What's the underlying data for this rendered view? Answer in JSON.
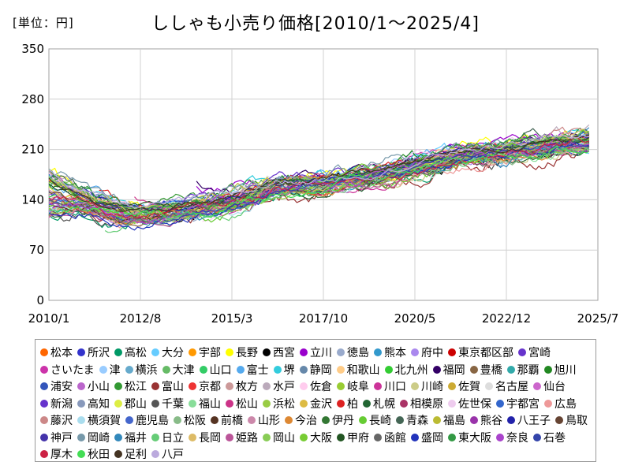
{
  "header": {
    "unit": "[単位：円]"
  },
  "chart_data": {
    "type": "line",
    "title": "ししゃも小売り価格[2010/1～2025/4]",
    "xlabel": "",
    "ylabel": "",
    "ylim": [
      0,
      350
    ],
    "yticks": [
      "0",
      "70",
      "140",
      "210",
      "280",
      "350"
    ],
    "xticks": [
      "2010/1",
      "2012/8",
      "2015/3",
      "2017/10",
      "2020/5",
      "2022/12",
      "2025/7"
    ],
    "grid": true,
    "legend_position": "bottom",
    "trend": {
      "x": [
        "2010/1",
        "2011/1",
        "2012/1",
        "2012/8",
        "2013/6",
        "2014/6",
        "2015/3",
        "2016/1",
        "2016/6",
        "2017/1",
        "2017/10",
        "2018/6",
        "2019/6",
        "2020/5",
        "2021/6",
        "2022/6",
        "2022/12",
        "2023/6",
        "2024/6",
        "2025/4"
      ],
      "values": [
        152,
        140,
        122,
        120,
        124,
        130,
        136,
        148,
        158,
        160,
        162,
        168,
        176,
        186,
        200,
        206,
        208,
        212,
        218,
        222
      ]
    },
    "series": [
      {
        "name": "松本",
        "color": "#ff6600"
      },
      {
        "name": "所沢",
        "color": "#3333cc"
      },
      {
        "name": "高松",
        "color": "#009966"
      },
      {
        "name": "大分",
        "color": "#66ccff"
      },
      {
        "name": "宇部",
        "color": "#ff9900"
      },
      {
        "name": "長野",
        "color": "#ffff00"
      },
      {
        "name": "西宮",
        "color": "#000000"
      },
      {
        "name": "立川",
        "color": "#9900cc"
      },
      {
        "name": "徳島",
        "color": "#99aacc"
      },
      {
        "name": "熊本",
        "color": "#3399cc"
      },
      {
        "name": "府中",
        "color": "#aa88ee"
      },
      {
        "name": "東京都区部",
        "color": "#cc0000"
      },
      {
        "name": "宮崎",
        "color": "#6633cc"
      },
      {
        "name": "さいたま",
        "color": "#cc33aa"
      },
      {
        "name": "津",
        "color": "#99ccff"
      },
      {
        "name": "横浜",
        "color": "#66aacc"
      },
      {
        "name": "大津",
        "color": "#66bb66"
      },
      {
        "name": "山口",
        "color": "#33cc66"
      },
      {
        "name": "富士",
        "color": "#55aaee"
      },
      {
        "name": "堺",
        "color": "#33ccdd"
      },
      {
        "name": "静岡",
        "color": "#6688aa"
      },
      {
        "name": "和歌山",
        "color": "#ffcc88"
      },
      {
        "name": "北九州",
        "color": "#33cc33"
      },
      {
        "name": "福岡",
        "color": "#330066"
      },
      {
        "name": "豊橋",
        "color": "#886644"
      },
      {
        "name": "那覇",
        "color": "#33aaaa"
      },
      {
        "name": "旭川",
        "color": "#228822"
      },
      {
        "name": "浦安",
        "color": "#3355bb"
      },
      {
        "name": "小山",
        "color": "#bb66cc"
      },
      {
        "name": "松江",
        "color": "#339933"
      },
      {
        "name": "富山",
        "color": "#993333"
      },
      {
        "name": "京都",
        "color": "#ee3333"
      },
      {
        "name": "枚方",
        "color": "#cc9999"
      },
      {
        "name": "水戸",
        "color": "#bbaabb"
      },
      {
        "name": "佐倉",
        "color": "#ffccee"
      },
      {
        "name": "岐阜",
        "color": "#99cc33"
      },
      {
        "name": "川口",
        "color": "#cc3399"
      },
      {
        "name": "川崎",
        "color": "#cccc88"
      },
      {
        "name": "佐賀",
        "color": "#ccaa33"
      },
      {
        "name": "名古屋",
        "color": "#dddddd"
      },
      {
        "name": "仙台",
        "color": "#cc66cc"
      },
      {
        "name": "新潟",
        "color": "#6633cc"
      },
      {
        "name": "高知",
        "color": "#8899bb"
      },
      {
        "name": "郡山",
        "color": "#ddee44"
      },
      {
        "name": "千葉",
        "color": "#555555"
      },
      {
        "name": "福山",
        "color": "#88dd99"
      },
      {
        "name": "松山",
        "color": "#cc3388"
      },
      {
        "name": "浜松",
        "color": "#99cc44"
      },
      {
        "name": "金沢",
        "color": "#ddbb44"
      },
      {
        "name": "柏",
        "color": "#dd2222"
      },
      {
        "name": "札幌",
        "color": "#226633"
      },
      {
        "name": "相模原",
        "color": "#aa3366"
      },
      {
        "name": "佐世保",
        "color": "#eeccee"
      },
      {
        "name": "宇都宮",
        "color": "#3366cc"
      },
      {
        "name": "広島",
        "color": "#ee9999"
      },
      {
        "name": "藤沢",
        "color": "#cc8888"
      },
      {
        "name": "横須賀",
        "color": "#aaddee"
      },
      {
        "name": "鹿児島",
        "color": "#4466cc"
      },
      {
        "name": "松阪",
        "color": "#88bb88"
      },
      {
        "name": "前橋",
        "color": "#553322"
      },
      {
        "name": "山形",
        "color": "#cc88aa"
      },
      {
        "name": "今治",
        "color": "#dd8833"
      },
      {
        "name": "伊丹",
        "color": "#337733"
      },
      {
        "name": "長崎",
        "color": "#66cc33"
      },
      {
        "name": "青森",
        "color": "#446655"
      },
      {
        "name": "福島",
        "color": "#bbbb33"
      },
      {
        "name": "熊谷",
        "color": "#9933aa"
      },
      {
        "name": "八王子",
        "color": "#2222aa"
      },
      {
        "name": "鳥取",
        "color": "#664433"
      },
      {
        "name": "神戸",
        "color": "#4433aa"
      },
      {
        "name": "岡崎",
        "color": "#7799aa"
      },
      {
        "name": "福井",
        "color": "#3388bb"
      },
      {
        "name": "日立",
        "color": "#66cc77"
      },
      {
        "name": "長岡",
        "color": "#ddbb66"
      },
      {
        "name": "姫路",
        "color": "#bb5599"
      },
      {
        "name": "岡山",
        "color": "#88cc55"
      },
      {
        "name": "大阪",
        "color": "#77cc33"
      },
      {
        "name": "甲府",
        "color": "#225522"
      },
      {
        "name": "函館",
        "color": "#666666"
      },
      {
        "name": "盛岡",
        "color": "#2233bb"
      },
      {
        "name": "東大阪",
        "color": "#339944"
      },
      {
        "name": "奈良",
        "color": "#aa44cc"
      },
      {
        "name": "石巻",
        "color": "#3344aa"
      },
      {
        "name": "厚木",
        "color": "#cc2244"
      },
      {
        "name": "秋田",
        "color": "#44dd55"
      },
      {
        "name": "足利",
        "color": "#443322"
      },
      {
        "name": "八戸",
        "color": "#bbaadd"
      }
    ]
  }
}
